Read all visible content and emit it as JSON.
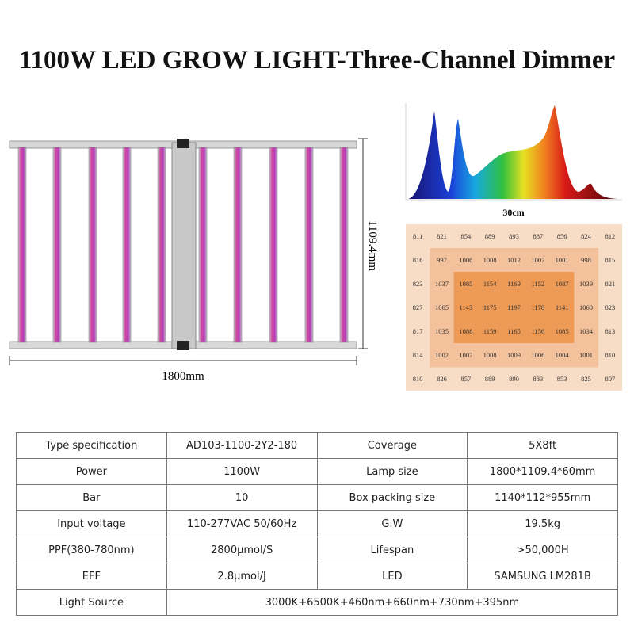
{
  "header": {
    "title": "1100W LED GROW LIGHT-Three-Channel Dimmer"
  },
  "dimensions": {
    "width": "1800mm",
    "height": "1109.4mm"
  },
  "ppfd": {
    "spacing": "30cm",
    "rows": [
      [
        811,
        821,
        854,
        889,
        893,
        887,
        856,
        824,
        812
      ],
      [
        816,
        997,
        1006,
        1008,
        1012,
        1007,
        1001,
        998,
        815
      ],
      [
        823,
        1037,
        1085,
        1154,
        1169,
        1152,
        1087,
        1039,
        821
      ],
      [
        827,
        1065,
        1143,
        1175,
        1197,
        1178,
        1141,
        1060,
        823
      ],
      [
        817,
        1035,
        1088,
        1159,
        1165,
        1156,
        1085,
        1034,
        813
      ],
      [
        814,
        1002,
        1007,
        1008,
        1009,
        1006,
        1004,
        1001,
        810
      ],
      [
        810,
        826,
        857,
        889,
        890,
        883,
        853,
        825,
        807
      ]
    ]
  },
  "table": {
    "rows": [
      [
        "Type specification",
        "AD103-1100-2Y2-180",
        "Coverage",
        "5X8ft"
      ],
      [
        "Power",
        "1100W",
        "Lamp size",
        "1800*1109.4*60mm"
      ],
      [
        "Bar",
        "10",
        "Box packing size",
        "1140*112*955mm"
      ],
      [
        "Input voltage",
        "110-277VAC 50/60Hz",
        "G.W",
        "19.5kg"
      ],
      [
        "PPF(380-780nm)",
        "2800μmol/S",
        "Lifespan",
        ">50,000H"
      ],
      [
        "EFF",
        "2.8μmol/J",
        "LED",
        "SAMSUNG LM281B"
      ],
      [
        "Light Source",
        "3000K+6500K+460nm+660nm+730nm+395nm"
      ]
    ]
  }
}
